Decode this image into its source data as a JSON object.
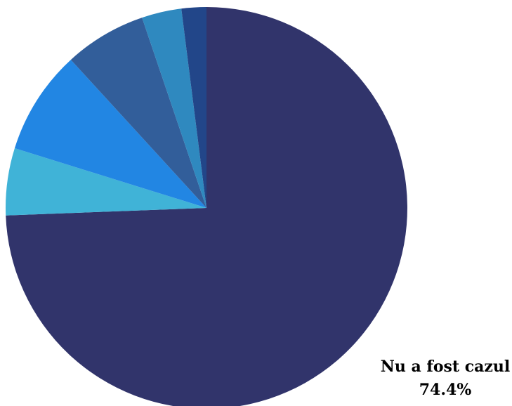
{
  "chart_data": {
    "type": "pie",
    "title": "",
    "start_angle": "12 o'clock",
    "direction": "clockwise",
    "slices": [
      {
        "name": "Nu a fost cazul",
        "value": 74.4,
        "display_value": "74.4%",
        "color": "#31346b",
        "labeled": true
      },
      {
        "name": "",
        "value": 5.4,
        "display_value": "",
        "color": "#40b3d7",
        "labeled": false
      },
      {
        "name": "",
        "value": 8.4,
        "display_value": "",
        "color": "#2286e3",
        "labeled": false
      },
      {
        "name": "",
        "value": 6.6,
        "display_value": "",
        "color": "#325e9a",
        "labeled": false
      },
      {
        "name": "",
        "value": 3.2,
        "display_value": "",
        "color": "#2f89bf",
        "labeled": false
      },
      {
        "name": "",
        "value": 2.0,
        "display_value": "",
        "color": "#224689",
        "labeled": false
      }
    ]
  }
}
